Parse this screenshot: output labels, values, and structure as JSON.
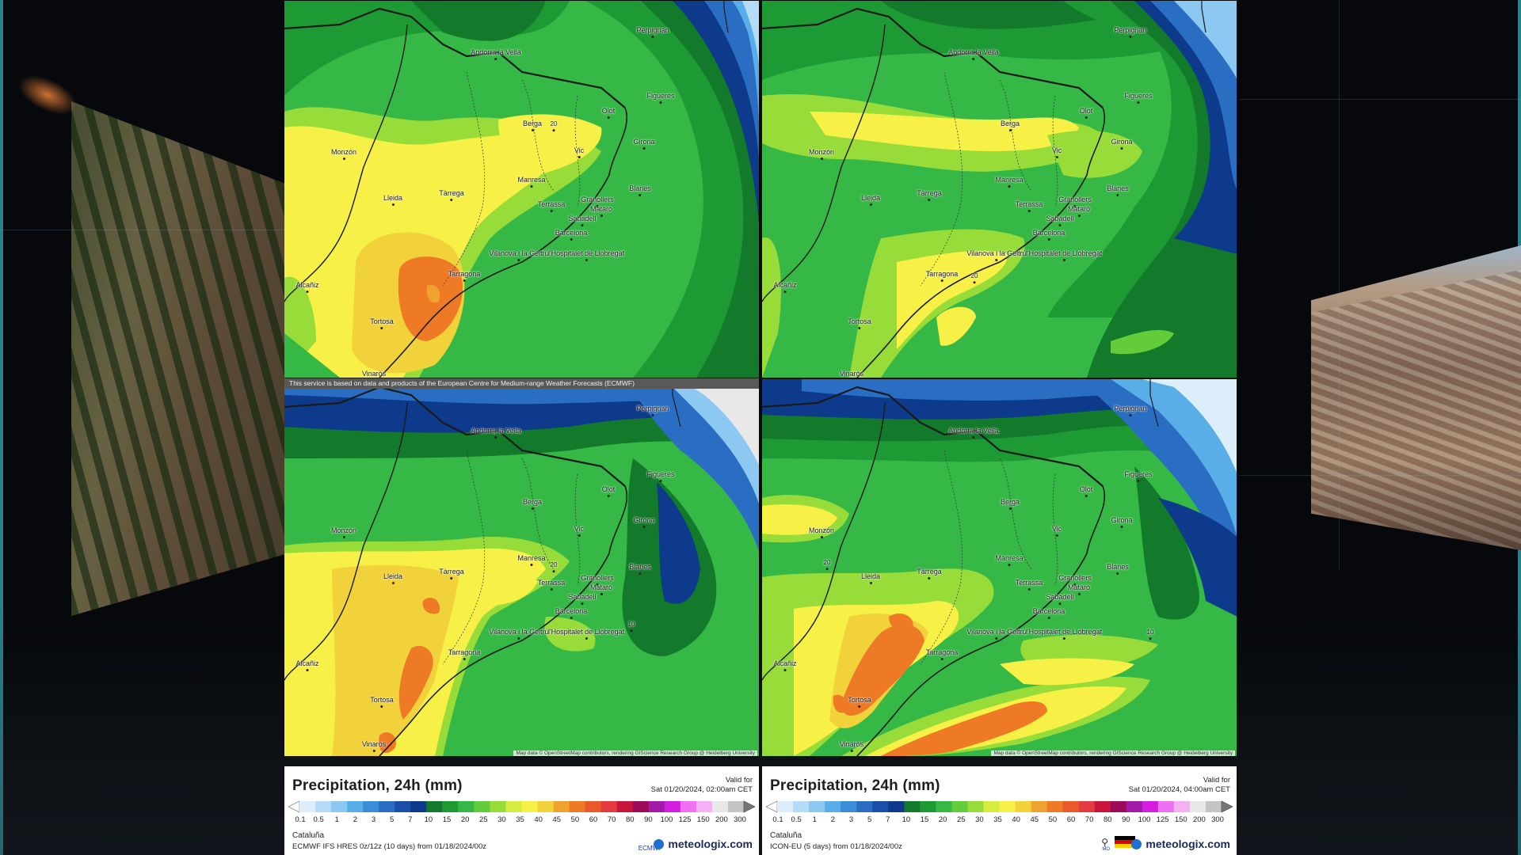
{
  "map_labels": {
    "ecmwf_notice": "This service is based on data and products of the European Centre for Medium-range Weather Forecasts (ECMWF)",
    "attribution": "Map data © OpenStreetMap contributors, rendering GIScience Research Group @ Heidelberg University",
    "cities": [
      "Perpignan",
      "Andorra la Vella",
      "Figueres",
      "Olot",
      "Berga",
      "Vic",
      "Girona",
      "Monzón",
      "Manresa",
      "Blanes",
      "Lleida",
      "Tàrrega",
      "Terrassa",
      "Granollers",
      "Mataró",
      "Sabadell",
      "Barcelona",
      "Vilanova i la Geltrú",
      "l'Hospitalet de Llobregat",
      "Tarragona",
      "Alcañiz",
      "Tortosa",
      "Vinaròs"
    ],
    "contour_values": {
      "tl": [
        "20"
      ],
      "tr": [
        "20"
      ],
      "bl": [
        "20",
        "10"
      ],
      "br": [
        "20",
        "10"
      ]
    }
  },
  "legends": [
    {
      "title": "Precipitation, 24h (mm)",
      "valid_label": "Valid for",
      "valid_time": "Sat 01/20/2024, 02:00am CET",
      "region": "Cataluña",
      "model": "ECMWF IFS HRES 0z/12z (10 days) from 01/18/2024/00z",
      "brand": "meteologix.com",
      "partner": "ECMWF"
    },
    {
      "title": "Precipitation, 24h (mm)",
      "valid_label": "Valid for",
      "valid_time": "Sat 01/20/2024, 04:00am CET",
      "region": "Cataluña",
      "model": "ICON-EU (5 days) from 01/18/2024/00z",
      "brand": "meteologix.com",
      "partner": "MO"
    }
  ],
  "scale": {
    "ticks": [
      "0.1",
      "0.5",
      "1",
      "2",
      "3",
      "5",
      "7",
      "10",
      "15",
      "20",
      "25",
      "30",
      "35",
      "40",
      "45",
      "50",
      "60",
      "70",
      "80",
      "90",
      "100",
      "125",
      "150",
      "200",
      "300"
    ],
    "colors": [
      "#dceefa",
      "#b4dcf8",
      "#8cc8f2",
      "#5aaee8",
      "#3a8ed8",
      "#2a6ec4",
      "#1a4ea8",
      "#0d3a8a",
      "#127a2a",
      "#1e9a35",
      "#35b845",
      "#62cc3a",
      "#98dc3a",
      "#d6ec3e",
      "#f6f047",
      "#f2d23a",
      "#f0a22e",
      "#ee7a26",
      "#ea5a28",
      "#e23c40",
      "#c8143a",
      "#9c0a5a",
      "#a21aa8",
      "#d21ee0",
      "#f070f4",
      "#f4b0f4",
      "#e8e8e8",
      "#c4c4c4"
    ]
  }
}
